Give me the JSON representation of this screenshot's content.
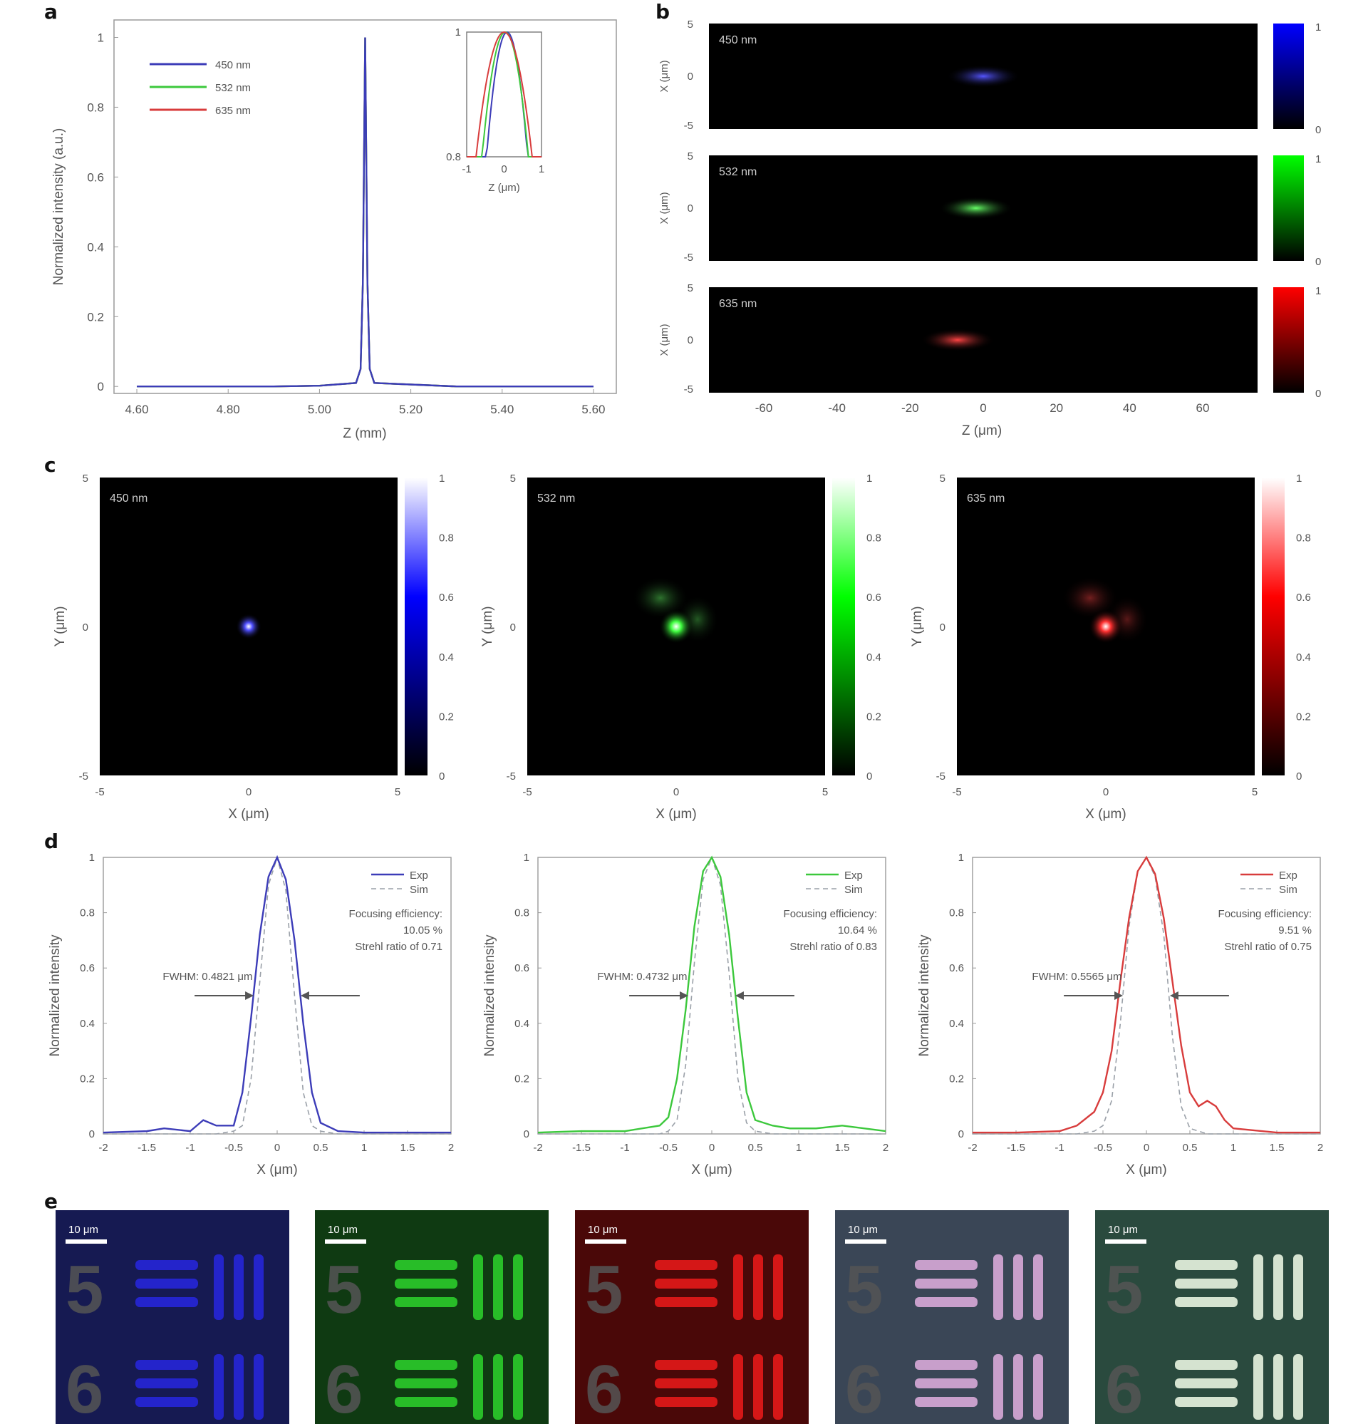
{
  "colors": {
    "blue": "#3c3cb8",
    "green": "#3cc83c",
    "red": "#d83c3c",
    "sim": "#9aa0a8",
    "axis": "#9a9a9a"
  },
  "panels": [
    "a",
    "b",
    "c",
    "d",
    "e"
  ],
  "chart_data": [
    {
      "id": "a",
      "type": "line",
      "xlabel": "Z (mm)",
      "ylabel": "Normalized intensity (a.u.)",
      "xlim": [
        4.55,
        5.65
      ],
      "ylim": [
        -0.02,
        1.05
      ],
      "xticks": [
        "4.60",
        "4.80",
        "5.00",
        "5.20",
        "5.40",
        "5.60"
      ],
      "yticks": [
        "0",
        "0.2",
        "0.4",
        "0.6",
        "0.8",
        "1"
      ],
      "x": [
        4.6,
        4.9,
        5.0,
        5.08,
        5.09,
        5.095,
        5.1,
        5.105,
        5.11,
        5.12,
        5.3,
        5.6
      ],
      "series": [
        {
          "name": "450 nm",
          "color": "#3c3cb8",
          "values": [
            0,
            0,
            0.002,
            0.01,
            0.05,
            0.3,
            1.0,
            0.3,
            0.05,
            0.01,
            0,
            0
          ]
        },
        {
          "name": "532 nm",
          "color": "#3cc83c",
          "values": [
            0,
            0,
            0.002,
            0.01,
            0.05,
            0.3,
            1.0,
            0.3,
            0.05,
            0.01,
            0,
            0
          ]
        },
        {
          "name": "635 nm",
          "color": "#d83c3c",
          "values": [
            0,
            0,
            0.002,
            0.01,
            0.05,
            0.3,
            1.0,
            0.3,
            0.05,
            0.01,
            0,
            0
          ]
        }
      ],
      "inset": {
        "xlabel": "Z (μm)",
        "xlim": [
          -1,
          1
        ],
        "ylim": [
          0.8,
          1
        ],
        "xticks": [
          "-1",
          "0",
          "1"
        ],
        "yticks": [
          "0.8",
          "1"
        ]
      }
    },
    {
      "id": "b",
      "type": "heatmap",
      "xlabel": "Z (μm)",
      "ylabel": "X (μm)",
      "xticks": [
        "-60",
        "-40",
        "-20",
        "0",
        "20",
        "40",
        "60"
      ],
      "yticks": [
        "5",
        "0",
        "-5"
      ],
      "images": [
        {
          "label": "450 nm",
          "color": "#3333ff",
          "cbar": [
            "1",
            "0"
          ]
        },
        {
          "label": "532 nm",
          "color": "#33ff33",
          "cbar": [
            "1",
            "0"
          ]
        },
        {
          "label": "635 nm",
          "color": "#ff2222",
          "cbar": [
            "1",
            "0"
          ]
        }
      ]
    },
    {
      "id": "c",
      "type": "heatmap",
      "xlabel": "X (μm)",
      "ylabel": "Y (μm)",
      "xticks": [
        "-5",
        "0",
        "5"
      ],
      "yticks": [
        "5",
        "0",
        "-5"
      ],
      "cbar_ticks": [
        "1",
        "0.8",
        "0.6",
        "0.4",
        "0.2",
        "0"
      ],
      "images": [
        {
          "label": "450 nm",
          "color": "#4040ff"
        },
        {
          "label": "532 nm",
          "color": "#30ee30"
        },
        {
          "label": "635 nm",
          "color": "#ff2a2a"
        }
      ]
    },
    {
      "id": "d",
      "type": "line",
      "xlabel": "X (μm)",
      "ylabel": "Normalized intensity",
      "xlim": [
        -2,
        2
      ],
      "ylim": [
        0,
        1
      ],
      "xticks": [
        "-2",
        "-1.5",
        "-1",
        "-0.5",
        "0",
        "0.5",
        "1",
        "1.5",
        "2"
      ],
      "yticks": [
        "0",
        "0.2",
        "0.4",
        "0.6",
        "0.8",
        "1"
      ],
      "plots": [
        {
          "color": "#3c3cb8",
          "legend": [
            "Exp",
            "Sim"
          ],
          "fwhm": "FWHM: 0.4821 μm",
          "eff": [
            "Focusing efficiency:",
            "10.05 %",
            "Strehl ratio of 0.71"
          ],
          "x": [
            -2,
            -1.5,
            -1.3,
            -1,
            -0.85,
            -0.7,
            -0.5,
            -0.4,
            -0.3,
            -0.2,
            -0.1,
            0,
            0.1,
            0.2,
            0.3,
            0.4,
            0.5,
            0.7,
            1,
            1.5,
            2
          ],
          "exp": [
            0.005,
            0.01,
            0.02,
            0.01,
            0.05,
            0.03,
            0.03,
            0.15,
            0.42,
            0.72,
            0.93,
            1.0,
            0.92,
            0.7,
            0.4,
            0.15,
            0.04,
            0.01,
            0.005,
            0.005,
            0.005
          ],
          "sim": [
            0,
            0,
            0,
            0,
            0,
            0,
            0.01,
            0.03,
            0.2,
            0.55,
            0.9,
            1.0,
            0.88,
            0.5,
            0.15,
            0.03,
            0.01,
            0,
            0,
            0,
            0
          ]
        },
        {
          "color": "#3cc83c",
          "legend": [
            "Exp",
            "Sim"
          ],
          "fwhm": "FWHM: 0.4732 μm",
          "eff": [
            "Focusing efficiency:",
            "10.64 %",
            "Strehl ratio of 0.83"
          ],
          "x": [
            -2,
            -1.5,
            -1,
            -0.6,
            -0.5,
            -0.4,
            -0.3,
            -0.2,
            -0.1,
            0,
            0.1,
            0.2,
            0.3,
            0.4,
            0.5,
            0.7,
            0.9,
            1.2,
            1.5,
            2
          ],
          "exp": [
            0.005,
            0.01,
            0.01,
            0.03,
            0.06,
            0.2,
            0.45,
            0.75,
            0.95,
            1.0,
            0.93,
            0.72,
            0.42,
            0.15,
            0.05,
            0.03,
            0.02,
            0.02,
            0.03,
            0.01
          ],
          "sim": [
            0,
            0,
            0,
            0,
            0.01,
            0.05,
            0.25,
            0.62,
            0.92,
            1.0,
            0.9,
            0.58,
            0.2,
            0.04,
            0.01,
            0,
            0,
            0,
            0,
            0
          ]
        },
        {
          "color": "#d83c3c",
          "legend": [
            "Exp",
            "Sim"
          ],
          "fwhm": "FWHM: 0.5565 μm",
          "eff": [
            "Focusing efficiency:",
            "9.51 %",
            "Strehl ratio of 0.75"
          ],
          "x": [
            -2,
            -1.5,
            -1,
            -0.8,
            -0.6,
            -0.5,
            -0.4,
            -0.3,
            -0.2,
            -0.1,
            0,
            0.1,
            0.2,
            0.3,
            0.4,
            0.5,
            0.6,
            0.7,
            0.8,
            0.9,
            1,
            1.5,
            2
          ],
          "exp": [
            0.005,
            0.005,
            0.01,
            0.03,
            0.08,
            0.15,
            0.3,
            0.55,
            0.78,
            0.95,
            1.0,
            0.94,
            0.78,
            0.55,
            0.32,
            0.15,
            0.1,
            0.12,
            0.1,
            0.05,
            0.02,
            0.005,
            0.005
          ],
          "sim": [
            0,
            0,
            0,
            0,
            0.01,
            0.03,
            0.12,
            0.4,
            0.75,
            0.95,
            1.0,
            0.93,
            0.72,
            0.35,
            0.1,
            0.02,
            0.01,
            0,
            0,
            0,
            0,
            0,
            0
          ]
        }
      ]
    },
    {
      "id": "e",
      "type": "image-grid",
      "scalebar": "10 μm",
      "tiles": [
        {
          "bg": "#161a52",
          "fg": "#2626d8"
        },
        {
          "bg": "#0f3a12",
          "fg": "#2bcc2b"
        },
        {
          "bg": "#4a0808",
          "fg": "#e41a1a"
        },
        {
          "bg": "#3a4656",
          "fg": "#d8a8d8"
        },
        {
          "bg": "#2a4a3e",
          "fg": "#e8f4e0"
        }
      ],
      "glyphs": [
        "5",
        "6"
      ]
    }
  ]
}
